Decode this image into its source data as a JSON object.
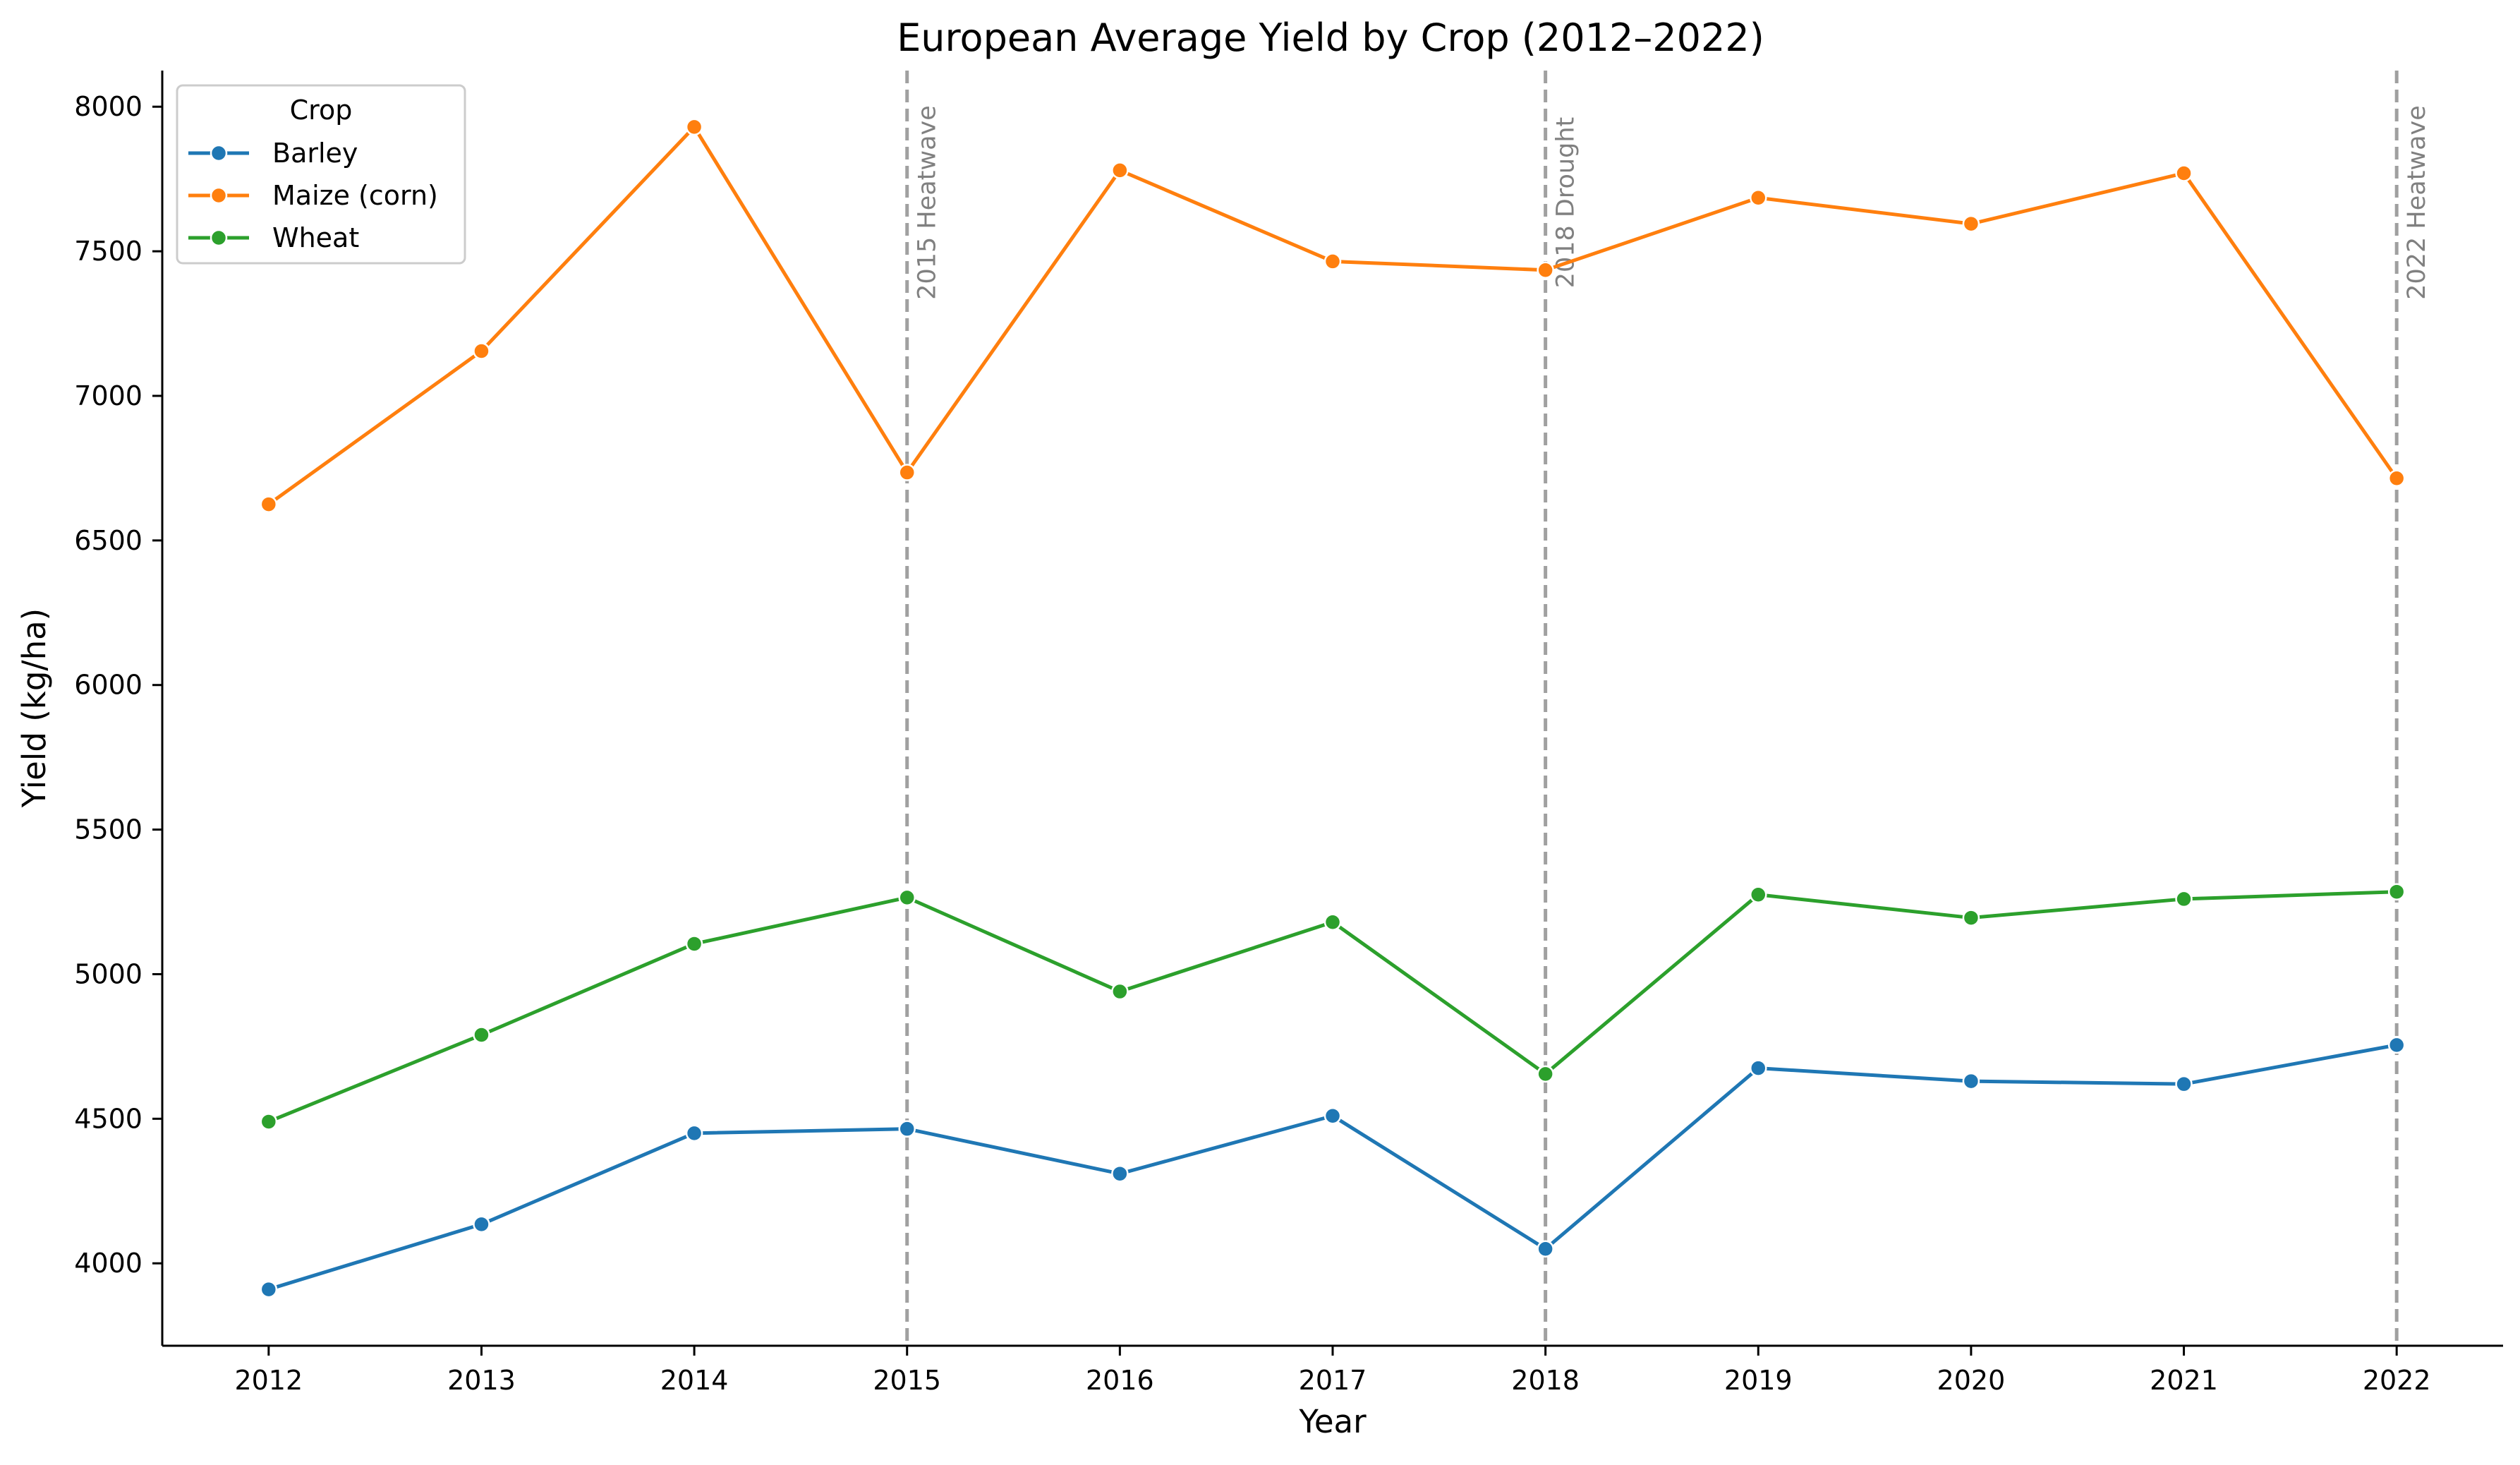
{
  "chart_data": {
    "type": "line",
    "title": "European Average Yield by Crop (2012–2022)",
    "xlabel": "Year",
    "ylabel": "Yield (kg/ha)",
    "x": [
      2012,
      2013,
      2014,
      2015,
      2016,
      2017,
      2018,
      2019,
      2020,
      2021,
      2022
    ],
    "x_tick_labels": [
      "2012",
      "2013",
      "2014",
      "2015",
      "2016",
      "2017",
      "2018",
      "2019",
      "2020",
      "2021",
      "2022"
    ],
    "xlim": [
      2011.5,
      2022.5
    ],
    "ylim": [
      3715,
      8125
    ],
    "y_ticks": [
      4000,
      4500,
      5000,
      5500,
      6000,
      6500,
      7000,
      7500,
      8000
    ],
    "y_tick_labels": [
      "4000",
      "4500",
      "5000",
      "5500",
      "6000",
      "6500",
      "7000",
      "7500",
      "8000"
    ],
    "grid": false,
    "legend": {
      "title": "Crop",
      "placement": "top-left"
    },
    "series": [
      {
        "name": "Barley",
        "color": "#1f77b4",
        "values": [
          3910,
          4135,
          4450,
          4465,
          4310,
          4510,
          4050,
          4675,
          4630,
          4620,
          4755
        ]
      },
      {
        "name": "Maize (corn)",
        "color": "#ff7f0e",
        "values": [
          6625,
          7155,
          7930,
          6735,
          7780,
          7465,
          7435,
          7685,
          7595,
          7770,
          6715
        ]
      },
      {
        "name": "Wheat",
        "color": "#2ca02c",
        "values": [
          4490,
          4790,
          5105,
          5265,
          4940,
          5180,
          4655,
          5275,
          5195,
          5260,
          5285
        ]
      }
    ],
    "annotations": [
      {
        "x": 2015,
        "label": "2015 Heatwave",
        "color": "#a0a0a0"
      },
      {
        "x": 2018,
        "label": "2018 Drought",
        "color": "#a0a0a0"
      },
      {
        "x": 2022,
        "label": "2022 Heatwave",
        "color": "#a0a0a0"
      }
    ]
  }
}
